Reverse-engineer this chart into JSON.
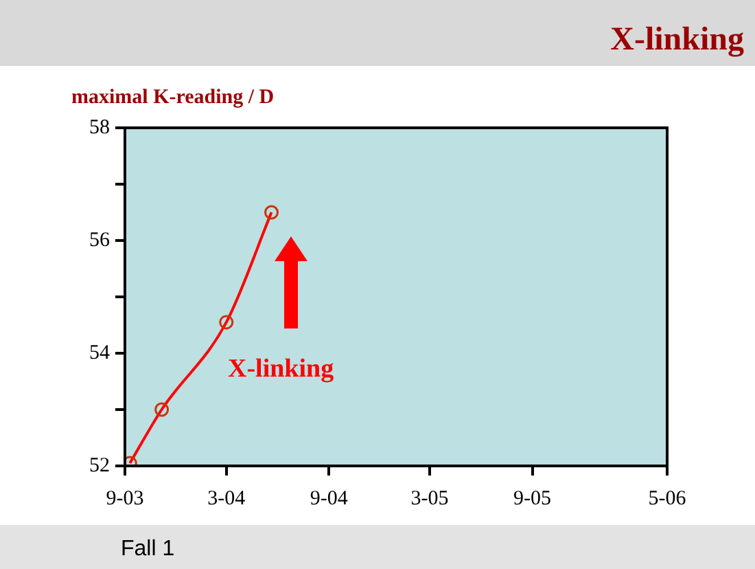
{
  "chart_data": {
    "type": "line",
    "title": "X-linking",
    "ylabel": "maximal K-reading / D",
    "x": [
      "2003-09-10",
      "2003-11-06",
      "2004-03-01",
      "2004-05-21"
    ],
    "series": [
      {
        "color": "#ff0000",
        "values": [
          52.05,
          53.0,
          54.55,
          56.5
        ]
      }
    ],
    "xlim": [
      "2003-09",
      "2006-05"
    ],
    "xticks": [
      {
        "value": "2003-09",
        "label": "9-03"
      },
      {
        "value": "2004-03",
        "label": "3-04"
      },
      {
        "value": "2004-09",
        "label": "9-04"
      },
      {
        "value": "2005-03",
        "label": "3-05"
      },
      {
        "value": "2005-09",
        "label": "9-05"
      },
      {
        "value": "2006-05",
        "label": "5-06"
      }
    ],
    "ylim": [
      52,
      58
    ],
    "yticks": [
      52,
      {
        "value": 53,
        "label": null
      },
      54,
      {
        "value": 55,
        "label": null
      },
      56,
      {
        "value": 57,
        "label": null
      },
      58
    ],
    "marker": "circle",
    "line_style": "solid",
    "legend": false,
    "annotations": [
      "X-linking",
      "Fall 1"
    ]
  }
}
